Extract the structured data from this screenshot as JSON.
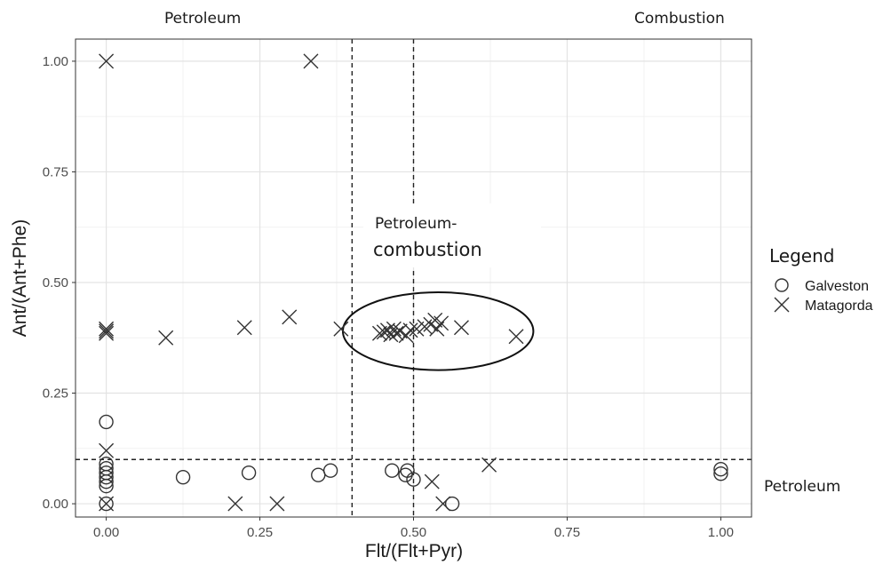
{
  "chart_data": {
    "type": "scatter",
    "xlabel": "Flt/(Flt+Pyr)",
    "ylabel": "Ant/(Ant+Phe)",
    "xlim": [
      -0.05,
      1.05
    ],
    "ylim": [
      -0.03,
      1.05
    ],
    "x_ticks": [
      0.0,
      0.25,
      0.5,
      0.75,
      1.0
    ],
    "x_tick_labels": [
      "0.00",
      "0.25",
      "0.50",
      "0.75",
      "1.00"
    ],
    "y_ticks": [
      0.0,
      0.25,
      0.5,
      0.75,
      1.0
    ],
    "y_tick_labels": [
      "0.00",
      "0.25",
      "0.50",
      "0.75",
      "1.00"
    ],
    "grid": true,
    "legend": {
      "title": "Legend",
      "placement": "right",
      "entries": [
        {
          "name": "Galveston",
          "marker": "circle"
        },
        {
          "name": "Matagorda",
          "marker": "x"
        }
      ]
    },
    "reference_lines": {
      "vertical": [
        0.4,
        0.5
      ],
      "horizontal": [
        0.1
      ]
    },
    "region_labels": {
      "top_left": "Petroleum",
      "top_right": "Combustion",
      "middle_line1": "Petroleum-",
      "middle_line2": "combustion",
      "right": "Petroleum"
    },
    "highlight_ellipse": {
      "cx": 0.54,
      "cy": 0.39,
      "rx": 0.155,
      "ry": 0.088
    },
    "series": [
      {
        "name": "Galveston",
        "marker": "circle",
        "points": [
          [
            0,
            0.185
          ],
          [
            0,
            0.09
          ],
          [
            0,
            0.08
          ],
          [
            0,
            0.07
          ],
          [
            0,
            0.06
          ],
          [
            0,
            0.05
          ],
          [
            0,
            0.04
          ],
          [
            0,
            0.0
          ],
          [
            0.125,
            0.06
          ],
          [
            0.232,
            0.07
          ],
          [
            0.345,
            0.065
          ],
          [
            0.365,
            0.075
          ],
          [
            0.465,
            0.075
          ],
          [
            0.487,
            0.065
          ],
          [
            0.49,
            0.075
          ],
          [
            0.5,
            0.055
          ],
          [
            0.563,
            0.0
          ],
          [
            1.0,
            0.068
          ],
          [
            1.0,
            0.078
          ]
        ]
      },
      {
        "name": "Matagorda",
        "marker": "x",
        "points": [
          [
            0,
            1.0
          ],
          [
            0,
            0.395
          ],
          [
            0,
            0.39
          ],
          [
            0,
            0.385
          ],
          [
            0,
            0.12
          ],
          [
            0,
            0.0
          ],
          [
            0.097,
            0.375
          ],
          [
            0.21,
            0.0
          ],
          [
            0.225,
            0.398
          ],
          [
            0.278,
            0.0
          ],
          [
            0.298,
            0.422
          ],
          [
            0.333,
            1.0
          ],
          [
            0.382,
            0.395
          ],
          [
            0.445,
            0.385
          ],
          [
            0.452,
            0.388
          ],
          [
            0.458,
            0.392
          ],
          [
            0.463,
            0.382
          ],
          [
            0.468,
            0.395
          ],
          [
            0.472,
            0.385
          ],
          [
            0.478,
            0.39
          ],
          [
            0.488,
            0.38
          ],
          [
            0.495,
            0.392
          ],
          [
            0.505,
            0.395
          ],
          [
            0.518,
            0.4
          ],
          [
            0.528,
            0.405
          ],
          [
            0.53,
            0.05
          ],
          [
            0.535,
            0.415
          ],
          [
            0.538,
            0.395
          ],
          [
            0.545,
            0.408
          ],
          [
            0.548,
            0.0
          ],
          [
            0.578,
            0.398
          ],
          [
            0.623,
            0.088
          ],
          [
            0.667,
            0.378
          ]
        ]
      }
    ]
  }
}
